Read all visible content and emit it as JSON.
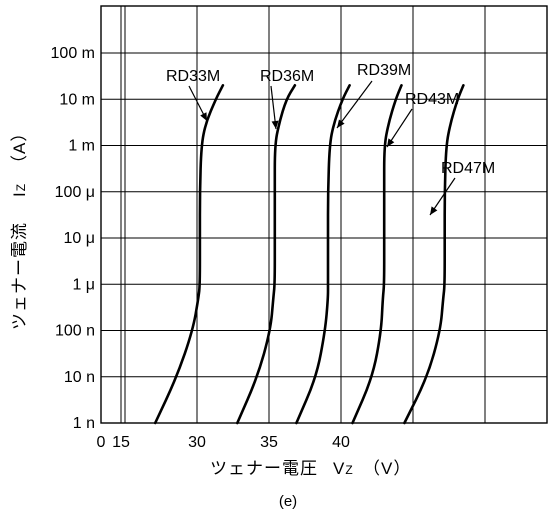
{
  "chart_data": {
    "type": "line",
    "x_axis": {
      "tick_labels": [
        "0",
        "15",
        "30",
        "35",
        "40"
      ],
      "ticks": [
        {
          "value": 0,
          "label": "0"
        },
        {
          "value": 15,
          "label": "15"
        },
        {
          "value": 30,
          "label": "30"
        },
        {
          "value": 35,
          "label": "35"
        },
        {
          "value": 40,
          "label": "40"
        }
      ],
      "range": [
        15,
        50
      ],
      "label": "ツェナー電圧　Vz（V）",
      "label_parts": {
        "text": "ツェナー電圧",
        "symbol": "V",
        "subscript": "Z",
        "unit": "（V）"
      }
    },
    "y_axis": {
      "scale": "log",
      "range_amperes": [
        1e-09,
        1
      ],
      "tick_labels": [
        "1 n",
        "10 n",
        "100 n",
        "1 μ",
        "10 μ",
        "100 μ",
        "1 m",
        "10 m",
        "100 m"
      ],
      "label": "ツェナー電流　Iz（A）",
      "label_parts": {
        "text": "ツェナー電流",
        "symbol": "I",
        "subscript": "Z",
        "unit": "（A）"
      }
    },
    "grid": true,
    "series": [
      {
        "name": "RD33M",
        "points": [
          [
            27.1,
            1e-09
          ],
          [
            28.6,
            1e-08
          ],
          [
            29.7,
            1e-07
          ],
          [
            30.1,
            5e-07
          ],
          [
            30.2,
            1e-06
          ],
          [
            30.2,
            1e-05
          ],
          [
            30.2,
            0.0001
          ],
          [
            30.3,
            0.001
          ],
          [
            30.6,
            0.003
          ],
          [
            31.3,
            0.01
          ],
          [
            31.8,
            0.02
          ]
        ]
      },
      {
        "name": "RD36M",
        "points": [
          [
            32.8,
            1e-09
          ],
          [
            34.2,
            1e-08
          ],
          [
            35.1,
            1e-07
          ],
          [
            35.3,
            5e-07
          ],
          [
            35.4,
            1e-06
          ],
          [
            35.4,
            1e-05
          ],
          [
            35.4,
            0.0001
          ],
          [
            35.4,
            0.001
          ],
          [
            35.7,
            0.003
          ],
          [
            36.2,
            0.01
          ],
          [
            36.8,
            0.02
          ]
        ]
      },
      {
        "name": "RD39M",
        "points": [
          [
            36.9,
            1e-09
          ],
          [
            38.3,
            1e-08
          ],
          [
            38.9,
            1e-07
          ],
          [
            39.1,
            5e-07
          ],
          [
            39.1,
            1e-06
          ],
          [
            39.1,
            1e-05
          ],
          [
            39.1,
            0.0001
          ],
          [
            39.2,
            0.001
          ],
          [
            39.5,
            0.003
          ],
          [
            40.1,
            0.01
          ],
          [
            40.6,
            0.02
          ]
        ]
      },
      {
        "name": "RD43M",
        "points": [
          [
            40.8,
            1e-09
          ],
          [
            42.2,
            1e-08
          ],
          [
            42.8,
            1e-07
          ],
          [
            42.9,
            5e-07
          ],
          [
            43.0,
            1e-06
          ],
          [
            43.0,
            1e-05
          ],
          [
            43.0,
            0.0001
          ],
          [
            43.0,
            0.001
          ],
          [
            43.3,
            0.003
          ],
          [
            43.8,
            0.01
          ],
          [
            44.2,
            0.02
          ]
        ]
      },
      {
        "name": "RD47M",
        "points": [
          [
            44.4,
            1e-09
          ],
          [
            46.0,
            1e-08
          ],
          [
            46.9,
            1e-07
          ],
          [
            47.1,
            5e-07
          ],
          [
            47.2,
            1e-06
          ],
          [
            47.2,
            1e-05
          ],
          [
            47.2,
            0.0001
          ],
          [
            47.3,
            0.001
          ],
          [
            47.6,
            0.003
          ],
          [
            48.1,
            0.01
          ],
          [
            48.5,
            0.02
          ]
        ]
      }
    ],
    "annotations": [
      "RD33M",
      "RD36M",
      "RD39M",
      "RD43M",
      "RD47M"
    ],
    "caption": "(e)",
    "legend": "none"
  }
}
